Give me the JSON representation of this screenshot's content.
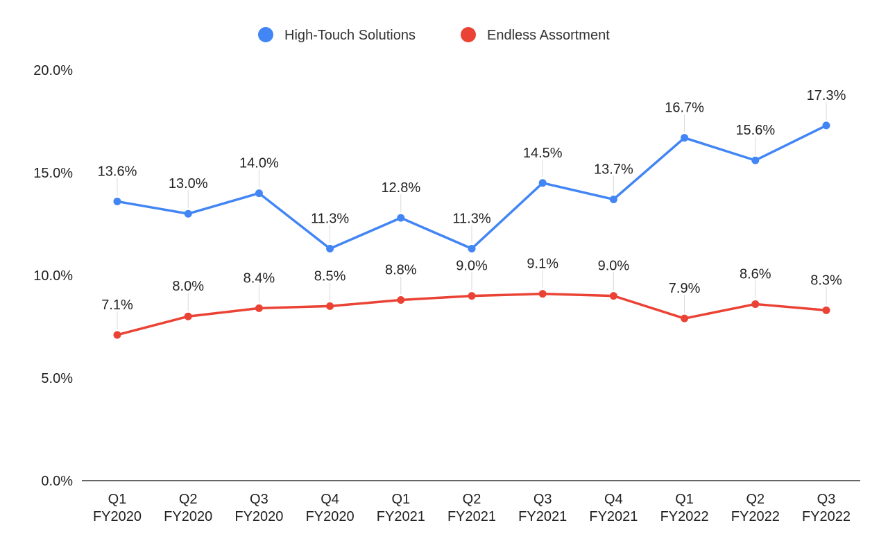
{
  "chart_data": {
    "type": "line",
    "categories": [
      [
        "Q1",
        "FY2020"
      ],
      [
        "Q2",
        "FY2020"
      ],
      [
        "Q3",
        "FY2020"
      ],
      [
        "Q4",
        "FY2020"
      ],
      [
        "Q1",
        "FY2021"
      ],
      [
        "Q2",
        "FY2021"
      ],
      [
        "Q3",
        "FY2021"
      ],
      [
        "Q4",
        "FY2021"
      ],
      [
        "Q1",
        "FY2022"
      ],
      [
        "Q2",
        "FY2022"
      ],
      [
        "Q3",
        "FY2022"
      ]
    ],
    "series": [
      {
        "name": "High-Touch Solutions",
        "color": "#4285f4",
        "values": [
          13.6,
          13.0,
          14.0,
          11.3,
          12.8,
          11.3,
          14.5,
          13.7,
          16.7,
          15.6,
          17.3
        ],
        "labels": [
          "13.6%",
          "13.0%",
          "14.0%",
          "11.3%",
          "12.8%",
          "11.3%",
          "14.5%",
          "13.7%",
          "16.7%",
          "15.6%",
          "17.3%"
        ]
      },
      {
        "name": "Endless Assortment",
        "color": "#ea4335",
        "values": [
          7.1,
          8.0,
          8.4,
          8.5,
          8.8,
          9.0,
          9.1,
          9.0,
          7.9,
          8.6,
          8.3
        ],
        "labels": [
          "7.1%",
          "8.0%",
          "8.4%",
          "8.5%",
          "8.8%",
          "9.0%",
          "9.1%",
          "9.0%",
          "7.9%",
          "8.6%",
          "8.3%"
        ]
      }
    ],
    "yticks": [
      0,
      5,
      10,
      15,
      20
    ],
    "ytick_labels": [
      "0.0%",
      "5.0%",
      "10.0%",
      "15.0%",
      "20.0%"
    ],
    "ylim": [
      0,
      20
    ],
    "grid": false,
    "legend": "top-center",
    "title": "",
    "xlabel": "",
    "ylabel": ""
  }
}
